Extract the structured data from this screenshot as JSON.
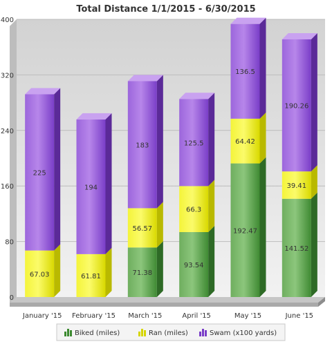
{
  "chart_data": {
    "type": "bar",
    "stacked": true,
    "title": "Total Distance 1/1/2015 - 6/30/2015",
    "categories": [
      "January '15",
      "February '15",
      "March '15",
      "April '15",
      "May '15",
      "June '15"
    ],
    "series": [
      {
        "name": "Biked (miles)",
        "values": [
          0,
          0,
          71.38,
          93.54,
          192.47,
          141.52
        ]
      },
      {
        "name": "Ran (miles)",
        "values": [
          67.03,
          61.81,
          56.57,
          66.3,
          64.42,
          39.41
        ]
      },
      {
        "name": "Swam (x100 yards)",
        "values": [
          225,
          194,
          183,
          125.5,
          136.5,
          190.26
        ]
      }
    ],
    "data_labels": [
      [
        "",
        "67.03",
        "225"
      ],
      [
        "",
        "61.81",
        "194"
      ],
      [
        "71.38",
        "56.57",
        "183"
      ],
      [
        "93.54",
        "66.3",
        "125.5"
      ],
      [
        "192.47",
        "64.42",
        "136.5"
      ],
      [
        "141.52",
        "39.41",
        "190.26"
      ]
    ],
    "ylim": [
      0,
      400
    ],
    "yticks": [
      "0",
      "80",
      "160",
      "240",
      "320",
      "400"
    ],
    "grid": true,
    "legend_position": "bottom",
    "colors": {
      "biked": "#4a9a3c",
      "ran": "#eeee00",
      "swam": "#8a4fd6",
      "plot_bg": "#d8d8d8",
      "plot_bg_light": "#efefef"
    },
    "icons": {
      "biked": "bar-chart-icon-green",
      "ran": "bar-chart-icon-yellow",
      "swam": "bar-chart-icon-purple"
    }
  }
}
